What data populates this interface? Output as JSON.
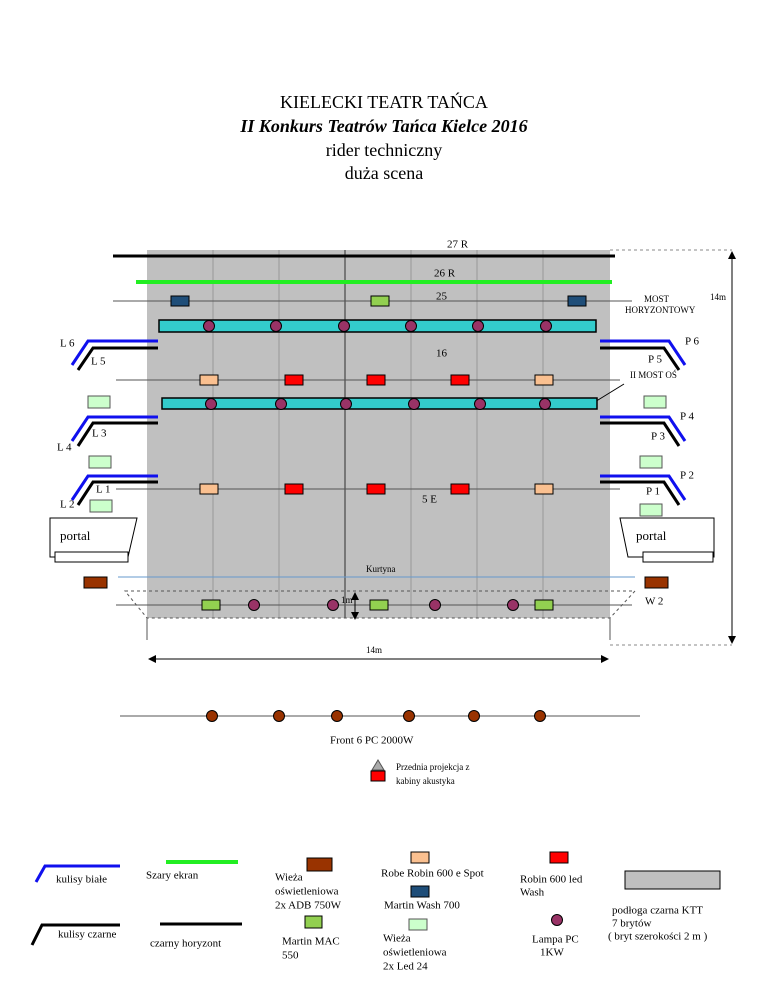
{
  "header": {
    "title": "KIELECKI TEATR TAŃCA",
    "subtitle": "II Konkurs Teatrów Tańca Kielce 2016",
    "line3": "rider techniczny",
    "line4": "duża scena"
  },
  "stage": {
    "bar_27": "27 R",
    "bar_26": "26 R",
    "bar_25": "25",
    "most_horyzontowy": [
      "MOST",
      "HORYZONTOWY"
    ],
    "depth": "14m",
    "l6": "L 6",
    "l5": "L 5",
    "bar_16": "16",
    "p6": "P 6",
    "p5": "P 5",
    "most_os": "II  MOST OŚ",
    "p4": "P 4",
    "l3": "L 3",
    "l4": "L 4",
    "p3": "P 3",
    "p2": "P 2",
    "l1": "L 1",
    "l2": "L 2",
    "bar_5": "5 E",
    "p1": "P 1",
    "portal_left": "portal",
    "portal_right": "portal",
    "curtain": "Kurtyna",
    "apron": "1m",
    "w2": "W 2",
    "width": "14m",
    "front": "Front 6 PC 2000W",
    "projection": [
      "Przednia projekcja z",
      "kabiny akustyka"
    ]
  },
  "legend": {
    "white_wings": "kulisy białe",
    "grey_screen": "Szary ekran",
    "tower_adb": [
      "Wieża",
      "oświetleniowa",
      "2x ADB 750W"
    ],
    "robe_spot": "Robe Robin 600 e Spot",
    "robin_wash": [
      "Robin 600 led",
      "Wash"
    ],
    "martin_wash": "Martin Wash 700",
    "black_wings": "kulisy czarne",
    "black_horizon": "czarny horyzont",
    "martin_mac": [
      "Martin MAC",
      "550"
    ],
    "tower_led": [
      "Wieża",
      "oświetleniowa",
      "2x Led 24"
    ],
    "lamp_pc": [
      "Lampa PC",
      "1KW"
    ],
    "floor": [
      "podłoga czarna  KTT",
      "7 brytów",
      "( bryt szerokości 2 m )"
    ]
  }
}
